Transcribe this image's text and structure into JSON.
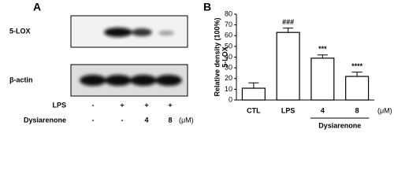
{
  "panel_a": {
    "label": "A",
    "blots": [
      "5-LOX",
      "β-actin"
    ],
    "treatments": [
      {
        "name": "LPS",
        "levels": [
          "-",
          "+",
          "+",
          "+"
        ]
      },
      {
        "name": "Dysiarenone",
        "levels": [
          "-",
          "-",
          "4",
          "8"
        ]
      }
    ],
    "unit": "(μM)"
  },
  "chart_data": {
    "type": "bar",
    "panel_label": "B",
    "y_label": [
      "Relative density (100%)",
      "5-LOX"
    ],
    "categories": [
      "CTL",
      "LPS",
      "4",
      "8"
    ],
    "values": [
      11,
      63,
      39,
      22
    ],
    "errors": [
      5,
      4,
      3,
      4
    ],
    "annotations": [
      null,
      "###",
      "***",
      "****"
    ],
    "x_unit": "(μM)",
    "group_label": "Dysiarenone",
    "color": "#ffffff",
    "edge_color": "#000000",
    "ylim": [
      0,
      80
    ],
    "yticks": [
      0,
      10,
      20,
      30,
      40,
      50,
      60,
      70,
      80
    ]
  }
}
